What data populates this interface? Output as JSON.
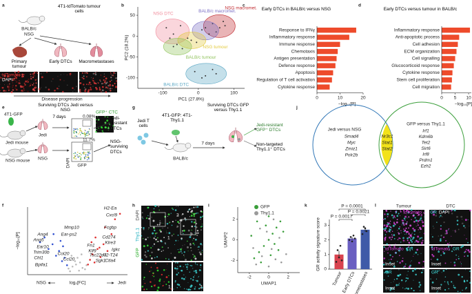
{
  "panel_labels": [
    "a",
    "b",
    "c",
    "d",
    "e",
    "f",
    "g",
    "h",
    "i",
    "j",
    "k",
    "l"
  ],
  "a": {
    "cells": "4T1-tdTomato tumour cells",
    "mice": [
      "BALB/c",
      "NSG"
    ],
    "stages": [
      "Primary tumour",
      "Early DTCs",
      "Macrometastases"
    ],
    "stain": [
      "tdTomato",
      "DAPI"
    ],
    "axis": "Disease progression"
  },
  "e": {
    "title": "Surviving DTCs Jedi versus NSG",
    "cells": "4T1-GFP",
    "mice": [
      "Jedi mouse",
      "NSG mouse"
    ],
    "lungs": [
      "Jedi",
      "NSG"
    ],
    "time": "7 days",
    "gates": [
      "0.08%",
      "11.7%"
    ],
    "axes": [
      "DAPI",
      "GFP"
    ],
    "image": "GFP⁺ CTC",
    "outcomes": [
      "Jedi-resistant DTCs",
      "NSG-surviving DTCs"
    ]
  },
  "g": {
    "title": "Surviving DTCs GFP versus Thy1.1",
    "tcells": "Jedi T cells",
    "cells": "4T1-GFP: 4T1-Thy1.1",
    "mouse": "BALB/c",
    "time": "7 days",
    "outcomes": [
      "Jedi-resistant GFP⁺ DTCs",
      "Non-targeted Thy1.1⁺ DTCs"
    ]
  },
  "h": {
    "channels": [
      "DAPI",
      "Thy1.1",
      "GFP"
    ],
    "insets": [
      "1",
      "2"
    ]
  },
  "j": {
    "left": {
      "title": "Jedi versus NSG",
      "genes": [
        "Smad4",
        "Myc",
        "Zmiz1",
        "Polr2b"
      ]
    },
    "shared": [
      "Nr3c1",
      "Stat1",
      "Stat2"
    ],
    "right": {
      "title": "GFP versus Thy1.1",
      "genes": [
        "Irf1",
        "Kdm6b",
        "Tet2",
        "Sirt6",
        "Irf8",
        "Prdm1",
        "Ezh2"
      ]
    }
  },
  "l": {
    "columns": [
      "Tumour",
      "DTC"
    ],
    "channels": [
      "tdTomato",
      "GR",
      "DAPI"
    ],
    "inset": "Inset"
  },
  "chart_data": [
    {
      "type": "scatter",
      "xlabel": "PC1 (27.8%)",
      "ylabel": "PC2 (18.2%)",
      "xlim": [
        -170,
        130
      ],
      "ylim": [
        -125,
        70
      ],
      "xticks": [
        -100,
        0,
        100
      ],
      "yticks": [
        -100,
        -50,
        0,
        50
      ],
      "series": [
        {
          "name": "NSG DTC",
          "color": "#f08a9a",
          "x": [
            -90,
            -70,
            -50,
            -80
          ],
          "values": [
            20,
            5,
            25,
            -5
          ]
        },
        {
          "name": "NSG macromet.",
          "color": "#c0282d",
          "x": [
            40,
            60,
            70,
            50,
            75
          ],
          "values": [
            30,
            20,
            35,
            10,
            25
          ]
        },
        {
          "name": "BALB/c macromet.",
          "color": "#7b6fc4",
          "x": [
            10,
            30,
            20
          ],
          "values": [
            15,
            5,
            20
          ]
        },
        {
          "name": "NSG tumour",
          "color": "#e2c93a",
          "x": [
            -20,
            -5,
            -30
          ],
          "values": [
            -10,
            -15,
            -5
          ]
        },
        {
          "name": "BALB/c tumour",
          "color": "#8fc25a",
          "x": [
            -60,
            -45,
            -70
          ],
          "values": [
            -20,
            -30,
            -25
          ]
        },
        {
          "name": "BALB/c DTC",
          "color": "#5aa7c4",
          "x": [
            -10,
            20,
            40,
            10,
            50
          ],
          "values": [
            -85,
            -95,
            -80,
            -100,
            -90
          ]
        }
      ]
    },
    {
      "type": "barh",
      "title": "Early DTCs in BALB/c versus NSG",
      "xlabel": "−log₁₀[P]",
      "xlim": [
        0,
        20
      ],
      "xticks": [
        0,
        10,
        20
      ],
      "color": "#ee4b2b",
      "categories": [
        "Response to IFNγ",
        "Inflammatory response",
        "Immune response",
        "Chemotaxis",
        "Antigen presentation",
        "Defence response",
        "Apoptosis",
        "Regulation of T cell activation",
        "Cytokine response"
      ],
      "values": [
        17,
        14,
        10,
        9,
        8.5,
        8,
        7,
        6.5,
        5.5
      ]
    },
    {
      "type": "barh",
      "title": "Early DTCs versus tumour in BALB/c",
      "xlabel": "−log₁₀[P]",
      "xlim": [
        0,
        11
      ],
      "xticks": [
        0,
        5,
        10
      ],
      "color": "#ee4b2b",
      "categories": [
        "Inflammatory response",
        "Anti-apoptotic process",
        "Cell adhesion",
        "ECM organization",
        "Cell signalling",
        "Glucocorticoid response",
        "Cytokine response",
        "Stem cell proliferation",
        "Cell migration"
      ],
      "values": [
        10.5,
        6.5,
        6,
        5.5,
        5,
        4.5,
        4,
        3.8,
        3.5
      ]
    },
    {
      "type": "volcano",
      "xlabel": "log₂[FC]",
      "ylabel": "−log₁₀[P]",
      "directions": [
        "NSG",
        "Jedi"
      ],
      "xlim": [
        -10,
        10
      ],
      "ylim": [
        0,
        100
      ],
      "series": [
        {
          "color": "#bbbbbb",
          "x": [
            -1.5,
            -1,
            -0.5,
            0,
            0.5,
            1,
            1.5,
            -1.2,
            0.8,
            -0.3,
            0.3,
            1.8,
            -1.8
          ],
          "values": [
            5,
            12,
            20,
            25,
            18,
            10,
            8,
            28,
            30,
            15,
            6,
            14,
            9
          ]
        },
        {
          "color": "#3050d0",
          "x": [
            -2.1,
            -2.6,
            -3.1,
            -3.7,
            -4.3,
            -5,
            -5.8,
            -6.6,
            -2.9,
            -3.4,
            -4.8,
            -7.5
          ],
          "values": [
            14,
            25,
            20,
            35,
            28,
            45,
            38,
            55,
            42,
            50,
            60,
            48
          ]
        },
        {
          "color": "#e03030",
          "x": [
            2.1,
            2.5,
            3,
            3.4,
            4,
            4.6,
            5.2,
            6,
            6.8,
            7.5,
            2.8,
            3.6,
            4.4,
            5.5,
            8.5
          ],
          "values": [
            15,
            22,
            30,
            18,
            38,
            26,
            45,
            35,
            60,
            82,
            48,
            55,
            40,
            70,
            90
          ]
        }
      ],
      "genes_up": [
        "H2-Ea",
        "Cxcl9",
        "Fcgbp",
        "Cd274",
        "Klre3",
        "Igkc",
        "Fn1",
        "Klf9",
        "Tsc22d3",
        "H2-T24",
        "Sgk1",
        "Ctla4"
      ],
      "genes_down": [
        "Mmp10",
        "Ear-ps2",
        "Ang4",
        "Ang5",
        "Ear10",
        "Trim30b",
        "Chl1",
        "Ccl20",
        "Col20",
        "Bpifa1"
      ]
    },
    {
      "type": "scatter",
      "xlabel": "UMAP1",
      "ylabel": "UMAP2",
      "xlim": [
        -3.2,
        3.2
      ],
      "ylim": [
        -3.2,
        3.2
      ],
      "xticks": [
        -2,
        0,
        2
      ],
      "yticks": [
        -2,
        0,
        2
      ],
      "series": [
        {
          "name": "GFP",
          "color": "#3a9e3a",
          "x": [
            -1.5,
            -1,
            -0.5,
            0,
            0.4,
            0.8,
            1.2,
            -0.8,
            0.2,
            -1.8,
            1.5,
            0,
            -0.3,
            0.6,
            -1.2,
            1
          ],
          "values": [
            -1.8,
            -1.2,
            -0.6,
            0,
            0.6,
            1.2,
            1.8,
            -2.2,
            -1.5,
            0.4,
            0.8,
            2.3,
            1.4,
            -0.4,
            1.8,
            -1
          ]
        },
        {
          "name": "Thy1.1",
          "color": "#9a9a9a",
          "x": [
            -1.3,
            -0.7,
            0,
            0.7,
            1.3,
            -1.6,
            0.3,
            -0.2,
            1.1,
            -0.9,
            0.5,
            1.8
          ],
          "values": [
            -2.4,
            -1.6,
            -2.6,
            -1.9,
            -2.2,
            -0.8,
            -0.9,
            0.8,
            0.2,
            1.1,
            2,
            -1.4
          ]
        }
      ]
    },
    {
      "type": "bar",
      "ylabel": "GR activity signature score",
      "ylim": [
        0,
        3.4
      ],
      "yticks": [
        0,
        1,
        2,
        3
      ],
      "categories": [
        "Tumour",
        "Early DTCs",
        "Macrometastases"
      ],
      "colors": [
        "#d9434f",
        "#6a5fc1",
        "#3f5aa8"
      ],
      "values": [
        1.0,
        2.1,
        2.7
      ],
      "errors": [
        0.25,
        0.1,
        0.15
      ],
      "points": [
        [
          0.5,
          1.3,
          0.8,
          1.6,
          0.6
        ],
        [
          2.0,
          2.2,
          1.9,
          2.3,
          2.1
        ],
        [
          2.4,
          2.9,
          2.8,
          2.6
        ]
      ],
      "annotations": [
        "P = 0.0017",
        "P = 0.0001",
        "P = 0.0021"
      ]
    }
  ]
}
